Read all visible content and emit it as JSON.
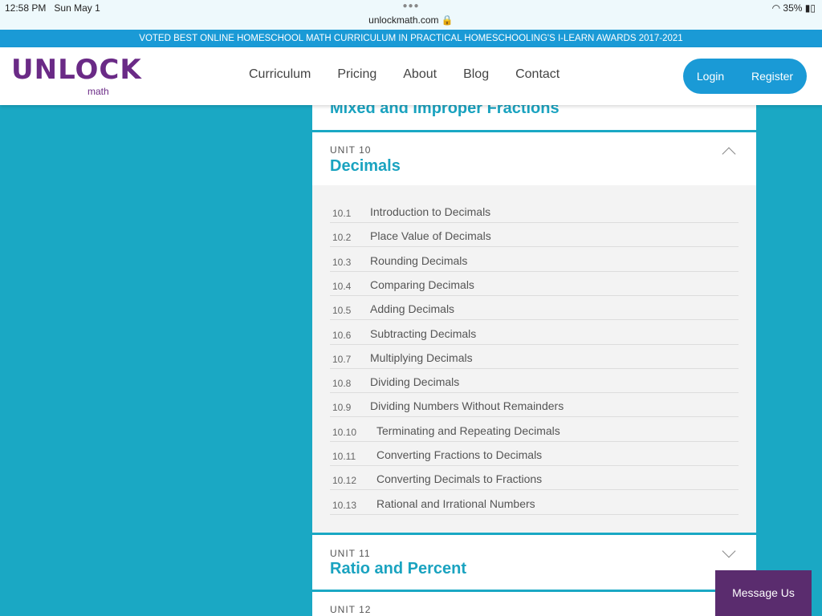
{
  "status": {
    "time": "12:58 PM",
    "date": "Sun May 1",
    "url": "unlockmath.com 🔒",
    "battery": "35%"
  },
  "banner": "VOTED BEST ONLINE HOMESCHOOL MATH CURRICULUM IN PRACTICAL HOMESCHOOLING'S I-LEARN AWARDS 2017-2021",
  "logo": {
    "text": "UNLOCK",
    "sub": "math"
  },
  "nav": [
    "Curriculum",
    "Pricing",
    "About",
    "Blog",
    "Contact"
  ],
  "auth": {
    "login": "Login",
    "register": "Register"
  },
  "prev_unit": {
    "title": "Mixed and Improper Fractions"
  },
  "unit10": {
    "label": "UNIT 10",
    "title": "Decimals",
    "lessons": [
      {
        "n": "10.1",
        "t": "Introduction to Decimals"
      },
      {
        "n": "10.2",
        "t": "Place Value of Decimals"
      },
      {
        "n": "10.3",
        "t": "Rounding Decimals"
      },
      {
        "n": "10.4",
        "t": "Comparing Decimals"
      },
      {
        "n": "10.5",
        "t": "Adding Decimals"
      },
      {
        "n": "10.6",
        "t": "Subtracting Decimals"
      },
      {
        "n": "10.7",
        "t": "Multiplying Decimals"
      },
      {
        "n": "10.8",
        "t": "Dividing Decimals"
      },
      {
        "n": "10.9",
        "t": "Dividing Numbers Without Remainders"
      },
      {
        "n": "10.10",
        "t": "Terminating and Repeating Decimals"
      },
      {
        "n": "10.11",
        "t": "Converting Fractions to Decimals"
      },
      {
        "n": "10.12",
        "t": "Converting Decimals to Fractions"
      },
      {
        "n": "10.13",
        "t": "Rational and Irrational Numbers"
      }
    ]
  },
  "unit11": {
    "label": "UNIT 11",
    "title": "Ratio and Percent"
  },
  "unit12": {
    "label": "UNIT 12"
  },
  "message": "Message Us"
}
